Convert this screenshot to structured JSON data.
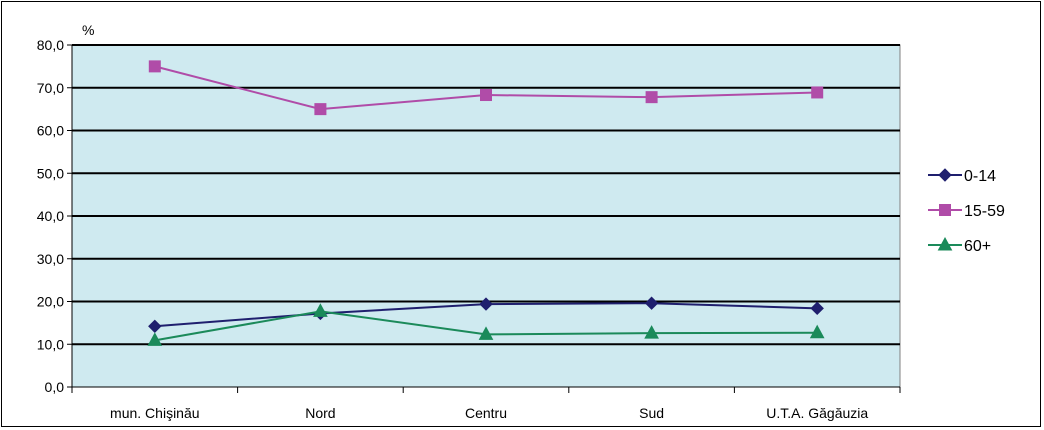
{
  "chart_data": {
    "type": "line",
    "ylabel": "%",
    "categories": [
      "mun. Chişinău",
      "Nord",
      "Centru",
      "Sud",
      "U.T.A. Găgăuzia"
    ],
    "ylim": [
      0,
      80
    ],
    "yticks": [
      "0,0",
      "10,0",
      "20,0",
      "30,0",
      "40,0",
      "50,0",
      "60,0",
      "70,0",
      "80,0"
    ],
    "grid": true,
    "legend_position": "right",
    "plot_background": "#cfeaf0",
    "series": [
      {
        "name": "0-14",
        "values": [
          14.2,
          17.2,
          19.4,
          19.6,
          18.4
        ],
        "color": "#1f1f6e",
        "marker": "diamond"
      },
      {
        "name": "15-59",
        "values": [
          75.0,
          65.0,
          68.3,
          67.8,
          68.9
        ],
        "color": "#b04ca8",
        "marker": "square"
      },
      {
        "name": "60+",
        "values": [
          10.9,
          17.7,
          12.3,
          12.6,
          12.7
        ],
        "color": "#1b8a5a",
        "marker": "triangle"
      }
    ]
  }
}
